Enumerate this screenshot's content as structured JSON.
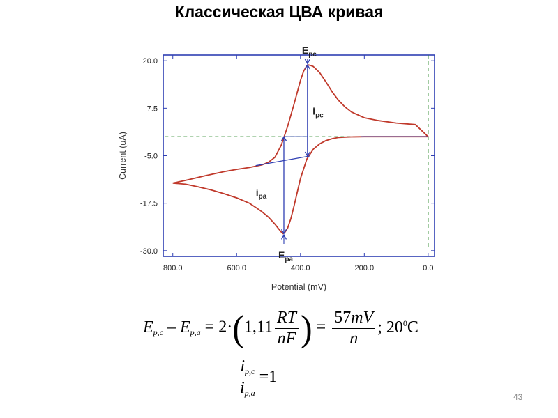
{
  "slide": {
    "title": "Классическая ЦВА кривая",
    "number": "43"
  },
  "chart_data": {
    "type": "line",
    "title": "",
    "xlabel": "Potential (mV)",
    "ylabel": "Current (uA)",
    "xlim": [
      830,
      -20
    ],
    "ylim": [
      -31.5,
      21.5
    ],
    "x_inverted": true,
    "x_ticks": [
      "800.0",
      "600.0",
      "400.0",
      "200.0",
      "0.0"
    ],
    "x_tick_values": [
      800,
      600,
      400,
      200,
      0
    ],
    "y_ticks": [
      "20.0",
      "7.5",
      "-5.0",
      "-17.5",
      "-30.0"
    ],
    "y_tick_values": [
      20,
      7.5,
      -5,
      -17.5,
      -30
    ],
    "grid": false,
    "colors": {
      "curve": "#c0392b",
      "annotation": "#2f3fb3",
      "guide": "#2e8b2e",
      "frame": "#2f3fb3"
    },
    "series": [
      {
        "name": "",
        "x": [
          800,
          760,
          720,
          680,
          640,
          600,
          560,
          540,
          520,
          500,
          480,
          470,
          460,
          455,
          450,
          440,
          430,
          420,
          400,
          380,
          360,
          340,
          320,
          300,
          280,
          260,
          240,
          200,
          100,
          0,
          40,
          100,
          160,
          200,
          240,
          260,
          280,
          300,
          320,
          340,
          360,
          370,
          375,
          380,
          390,
          400,
          420,
          440,
          460,
          480,
          500,
          520,
          560,
          600,
          640,
          700,
          760,
          800
        ],
        "y": [
          -12.2,
          -12.5,
          -13.2,
          -14.0,
          -15.0,
          -16.1,
          -17.5,
          -18.6,
          -19.8,
          -21.2,
          -23.0,
          -24.1,
          -25.1,
          -25.5,
          -25.3,
          -24.0,
          -21.5,
          -18.2,
          -11.0,
          -5.9,
          -3.3,
          -1.9,
          -1.0,
          -0.5,
          -0.2,
          -0.1,
          -0.05,
          0.0,
          0.0,
          0.0,
          3.2,
          3.6,
          4.3,
          5.0,
          6.5,
          7.8,
          9.5,
          11.7,
          14.4,
          16.9,
          18.5,
          18.8,
          18.9,
          18.7,
          17.3,
          14.8,
          8.6,
          2.8,
          -2.2,
          -5.4,
          -6.7,
          -7.4,
          -8.1,
          -8.6,
          -9.2,
          -10.3,
          -11.5,
          -12.2
        ]
      }
    ],
    "annotations": [
      {
        "main": "E",
        "sub": "pc",
        "x": 378,
        "y": 21.3
      },
      {
        "main": "E",
        "sub": "pa",
        "x": 452,
        "y": -30.4
      },
      {
        "main": "i",
        "sub": "pc",
        "x": 362,
        "y": 5.8
      },
      {
        "main": "i",
        "sub": "pa",
        "x": 518,
        "y": -15.5
      }
    ],
    "constructions": {
      "baseline": [
        [
          0,
          0
        ],
        [
          210,
          0
        ]
      ],
      "cathodic_baseline": [
        [
          540,
          -7.6
        ],
        [
          372,
          -5.1
        ]
      ],
      "ipc_vertical": {
        "x": 378,
        "y_from": -5.1,
        "y_to": 18.9
      },
      "ipc_level": [
        [
          452,
          0
        ],
        [
          378,
          0
        ]
      ],
      "ipa_vertical": {
        "x": 452,
        "y_from": 0,
        "y_to": -25.5
      },
      "green_horizontal": {
        "y": 0,
        "x_from": 825,
        "x_to": 0
      },
      "green_vertical": {
        "x": 0,
        "y_from": 21.5,
        "y_to": -29
      }
    }
  },
  "equations": {
    "eq1": {
      "E": "E",
      "pc_sub": "p,c",
      "minus": "–",
      "pa_sub": "p,a",
      "equals_two_dot": "= 2·",
      "coef": "1,11",
      "rt": "RT",
      "nf": "nF",
      "equals": "=",
      "mv": "57mV",
      "n": "n",
      "temp_suffix": "; 20",
      "temp_sup": "0",
      "celsius": "C"
    },
    "eq2": {
      "i": "i",
      "pc_sub": "p,c",
      "pa_sub": "p,a",
      "equals_one": "=1"
    }
  }
}
